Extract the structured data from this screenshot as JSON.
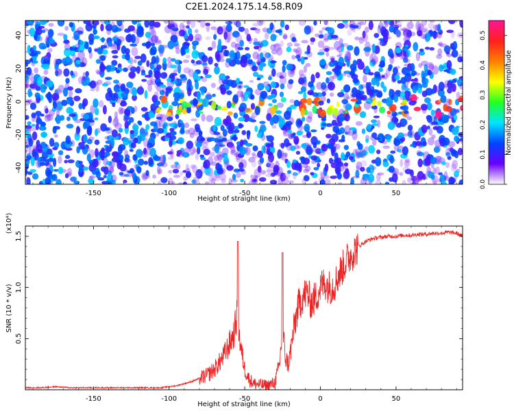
{
  "chart_data": [
    {
      "type": "heatmap",
      "title": "C2E1.2024.175.14.58.R09",
      "xlabel": "Height of straight line (km)",
      "ylabel": "Frequency (Hz)",
      "xlim": [
        -195,
        94
      ],
      "ylim": [
        -50,
        49
      ],
      "x_ticks": [
        -150,
        -100,
        -50,
        0,
        50
      ],
      "y_ticks": [
        -40,
        -20,
        0,
        20,
        40
      ],
      "colorbar": {
        "label": "Normalized spectral amplitude",
        "range": [
          0,
          0.55
        ],
        "ticks": [
          "0.0",
          "0.1",
          "0.2",
          "0.3",
          "0.4",
          "0.5"
        ],
        "colors": [
          "#ffffff",
          "#6a00ff",
          "#0044ff",
          "#00e5ff",
          "#22ff22",
          "#ffff00",
          "#ff7f00",
          "#ff2020",
          "#ff1493"
        ]
      },
      "ridge": {
        "center_hz": -3,
        "width_hz": 5,
        "x_start": -110
      },
      "grid": false
    },
    {
      "type": "line",
      "xlabel": "Height of straight line (km)",
      "ylabel": "SNR (10 * v/v)",
      "y_multiplier": "(x10⁴)",
      "xlim": [
        -195,
        94
      ],
      "ylim": [
        0,
        1.6
      ],
      "x_ticks": [
        -150,
        -100,
        -50,
        0,
        50
      ],
      "y_ticks": [
        "0.5",
        "1.0",
        "1.5"
      ],
      "color": "#ee2222",
      "x": [
        -195,
        -185,
        -175,
        -165,
        -155,
        -145,
        -135,
        -125,
        -115,
        -105,
        -95,
        -85,
        -75,
        -70,
        -65,
        -60,
        -57,
        -55,
        -53,
        -50,
        -47,
        -44,
        -40,
        -35,
        -30,
        -27,
        -25,
        -23,
        -21,
        -18,
        -15,
        -12,
        -9,
        -6,
        -3,
        0,
        3,
        6,
        9,
        12,
        15,
        18,
        21,
        25,
        30,
        35,
        40,
        45,
        50,
        55,
        60,
        65,
        70,
        75,
        80,
        85,
        90,
        94
      ],
      "y": [
        0.02,
        0.02,
        0.03,
        0.02,
        0.02,
        0.02,
        0.02,
        0.02,
        0.02,
        0.02,
        0.04,
        0.08,
        0.14,
        0.2,
        0.3,
        0.45,
        0.55,
        0.75,
        0.45,
        0.2,
        0.1,
        0.06,
        0.05,
        0.04,
        0.07,
        0.25,
        0.6,
        0.3,
        0.25,
        0.55,
        0.8,
        0.9,
        0.95,
        0.85,
        0.9,
        1.0,
        1.05,
        1.0,
        1.02,
        1.12,
        1.2,
        1.28,
        1.33,
        1.4,
        1.45,
        1.48,
        1.49,
        1.5,
        1.5,
        1.51,
        1.51,
        1.52,
        1.52,
        1.53,
        1.53,
        1.54,
        1.53,
        1.5
      ],
      "spikes": [
        {
          "x": -54.5,
          "y": 1.45
        },
        {
          "x": -25,
          "y": 1.34
        }
      ],
      "grid": false
    }
  ]
}
